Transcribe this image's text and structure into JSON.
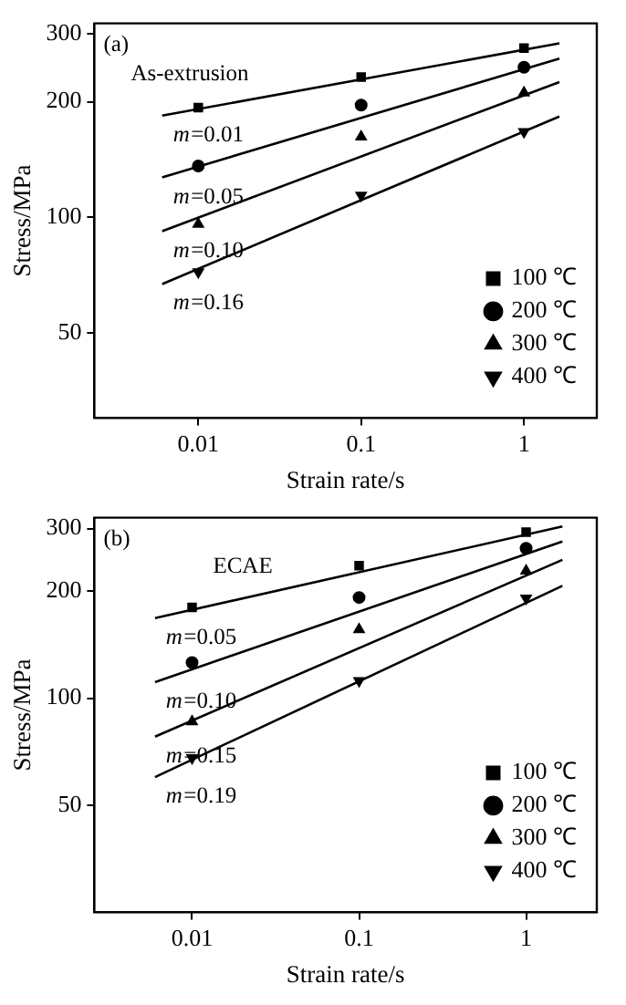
{
  "chart_data": [
    {
      "type": "scatter",
      "xlabel": "Strain rate/s",
      "ylabel": "Stress/MPa",
      "log": "xy",
      "xlim": [
        0.0023,
        2.8
      ],
      "xticks": [
        0.01,
        0.1,
        1
      ],
      "ylim": [
        30,
        320
      ],
      "yticks": [
        50,
        100,
        200,
        300
      ],
      "grid": false,
      "legend": "bottom right",
      "annotations": [
        "(a)",
        "As-extrusion",
        "m=0.01",
        "m=0.05",
        "m=0.10",
        "m=0.16"
      ],
      "series": [
        {
          "name": "100 ℃",
          "marker": "square",
          "color": "#000000",
          "x": [
            0.01,
            0.1,
            1
          ],
          "values": [
            193,
            232,
            276
          ]
        },
        {
          "name": "200 ℃",
          "marker": "circle",
          "color": "#000000",
          "x": [
            0.01,
            0.1,
            1
          ],
          "values": [
            136,
            196,
            246
          ]
        },
        {
          "name": "300 ℃",
          "marker": "triangle",
          "color": "#000000",
          "x": [
            0.01,
            0.1,
            1
          ],
          "values": [
            96,
            162,
            211
          ]
        },
        {
          "name": "400 ℃",
          "marker": "triangle-down",
          "color": "#000000",
          "x": [
            0.01,
            0.1,
            1
          ],
          "values": [
            72,
            114,
            167
          ]
        },
        {
          "type": "line",
          "color": "#000000",
          "x": [
            0.006,
            1.65
          ],
          "values": [
            184,
            284
          ]
        },
        {
          "type": "line",
          "color": "#000000",
          "x": [
            0.006,
            1.65
          ],
          "values": [
            127,
            259
          ]
        },
        {
          "type": "line",
          "color": "#000000",
          "x": [
            0.006,
            1.65
          ],
          "values": [
            92,
            225
          ]
        },
        {
          "type": "line",
          "color": "#000000",
          "x": [
            0.006,
            1.65
          ],
          "values": [
            67,
            183
          ]
        }
      ]
    },
    {
      "type": "scatter",
      "xlabel": "Strain rate/s",
      "ylabel": "Stress/MPa",
      "log": "xy",
      "xlim": [
        0.0026,
        2.65
      ],
      "xticks": [
        0.01,
        0.1,
        1
      ],
      "ylim": [
        25,
        322
      ],
      "yticks": [
        50,
        100,
        200,
        300
      ],
      "grid": false,
      "legend": "bottom right",
      "annotations": [
        "(b)",
        "ECAE",
        "m=0.05",
        "m=0.10",
        "m=0.15",
        "m=0.19"
      ],
      "series": [
        {
          "name": "100 ℃",
          "marker": "square",
          "color": "#000000",
          "x": [
            0.01,
            0.1,
            1
          ],
          "values": [
            180,
            236,
            293
          ]
        },
        {
          "name": "200 ℃",
          "marker": "circle",
          "color": "#000000",
          "x": [
            0.01,
            0.1,
            1
          ],
          "values": [
            126,
            192,
            264
          ]
        },
        {
          "name": "300 ℃",
          "marker": "triangle",
          "color": "#000000",
          "x": [
            0.01,
            0.1,
            1
          ],
          "values": [
            86,
            156,
            228
          ]
        },
        {
          "name": "400 ℃",
          "marker": "triangle-down",
          "color": "#000000",
          "x": [
            0.01,
            0.1,
            1
          ],
          "values": [
            68,
            112,
            191
          ]
        },
        {
          "type": "line",
          "color": "#000000",
          "x": [
            0.006,
            1.65
          ],
          "values": [
            168,
            304
          ]
        },
        {
          "type": "line",
          "color": "#000000",
          "x": [
            0.006,
            1.65
          ],
          "values": [
            111,
            276
          ]
        },
        {
          "type": "line",
          "color": "#000000",
          "x": [
            0.006,
            1.65
          ],
          "values": [
            78,
            245
          ]
        },
        {
          "type": "line",
          "color": "#000000",
          "x": [
            0.006,
            1.65
          ],
          "values": [
            60,
            207
          ]
        }
      ]
    }
  ]
}
